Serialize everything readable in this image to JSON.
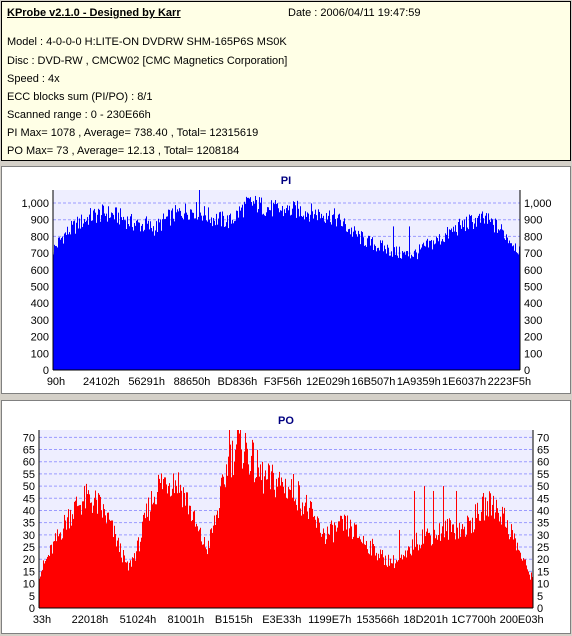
{
  "header": {
    "title": "KProbe v2.1.0 - Designed by Karr",
    "date": "Date : 2006/04/11 19:47:59",
    "lines": [
      "Model : 4-0-0-0 H:LITE-ON DVDRW SHM-165P6S MS0K",
      "Disc : DVD-RW , CMCW02 [CMC Magnetics Corporation]",
      "Speed : 4x",
      "ECC blocks sum (PI/PO) : 8/1",
      "Scanned range : 0 - 230E66h",
      "PI Max= 1078 , Average= 738.40 , Total= 12315619",
      "PO Max= 73 , Average= 12.13 , Total= 1208184"
    ]
  },
  "colors": {
    "pi": "#0000ff",
    "po": "#ff0000",
    "grid": "#9a9aff",
    "plot_bg": "#eeeeff",
    "info_bg": "#ffffe6"
  },
  "chart_data": [
    {
      "type": "area",
      "title": "PI",
      "ylim": [
        0,
        1078
      ],
      "y_ticks": [
        0,
        100,
        200,
        300,
        400,
        500,
        600,
        700,
        800,
        900,
        1000
      ],
      "y_tick_labels": [
        "0",
        "100",
        "200",
        "300",
        "400",
        "500",
        "600",
        "700",
        "800",
        "900",
        "1,000"
      ],
      "x_tick_labels": [
        "90h",
        "24102h",
        "56291h",
        "88650h",
        "BD836h",
        "F3F56h",
        "12E029h",
        "16B507h",
        "1A9359h",
        "1E6037h",
        "2223F5h"
      ],
      "grid": true,
      "envelope": [
        [
          0,
          720
        ],
        [
          0.02,
          800
        ],
        [
          0.05,
          870
        ],
        [
          0.08,
          920
        ],
        [
          0.11,
          940
        ],
        [
          0.14,
          920
        ],
        [
          0.17,
          880
        ],
        [
          0.2,
          860
        ],
        [
          0.22,
          850
        ],
        [
          0.24,
          900
        ],
        [
          0.26,
          930
        ],
        [
          0.28,
          950
        ],
        [
          0.3,
          960
        ],
        [
          0.32,
          940
        ],
        [
          0.34,
          910
        ],
        [
          0.36,
          900
        ],
        [
          0.38,
          890
        ],
        [
          0.4,
          950
        ],
        [
          0.42,
          1000
        ],
        [
          0.44,
          990
        ],
        [
          0.46,
          970
        ],
        [
          0.48,
          960
        ],
        [
          0.5,
          950
        ],
        [
          0.52,
          960
        ],
        [
          0.54,
          950
        ],
        [
          0.56,
          940
        ],
        [
          0.58,
          930
        ],
        [
          0.6,
          920
        ],
        [
          0.62,
          880
        ],
        [
          0.64,
          830
        ],
        [
          0.66,
          790
        ],
        [
          0.68,
          760
        ],
        [
          0.7,
          740
        ],
        [
          0.72,
          720
        ],
        [
          0.74,
          700
        ],
        [
          0.76,
          690
        ],
        [
          0.78,
          700
        ],
        [
          0.8,
          740
        ],
        [
          0.82,
          770
        ],
        [
          0.84,
          800
        ],
        [
          0.86,
          840
        ],
        [
          0.88,
          870
        ],
        [
          0.9,
          890
        ],
        [
          0.92,
          900
        ],
        [
          0.94,
          880
        ],
        [
          0.96,
          840
        ],
        [
          0.98,
          780
        ],
        [
          1,
          720
        ]
      ],
      "spikes": [
        [
          0.314,
          1078
        ],
        [
          0.2,
          920
        ],
        [
          0.5,
          970
        ],
        [
          0.585,
          940
        ],
        [
          0.73,
          860
        ],
        [
          0.765,
          860
        ],
        [
          0.93,
          940
        ]
      ]
    },
    {
      "type": "area",
      "title": "PO",
      "ylim": [
        0,
        73
      ],
      "y_ticks": [
        0,
        5,
        10,
        15,
        20,
        25,
        30,
        35,
        40,
        45,
        50,
        55,
        60,
        65,
        70
      ],
      "y_tick_labels": [
        "0",
        "5",
        "10",
        "15",
        "20",
        "25",
        "30",
        "35",
        "40",
        "45",
        "50",
        "55",
        "60",
        "65",
        "70"
      ],
      "x_tick_labels": [
        "33h",
        "22018h",
        "51024h",
        "81001h",
        "B1515h",
        "E3E33h",
        "1199E7h",
        "153566h",
        "18D201h",
        "1C7700h",
        "200E03h"
      ],
      "grid": true,
      "envelope": [
        [
          0,
          14
        ],
        [
          0.02,
          22
        ],
        [
          0.04,
          30
        ],
        [
          0.06,
          38
        ],
        [
          0.08,
          43
        ],
        [
          0.1,
          45
        ],
        [
          0.12,
          42
        ],
        [
          0.14,
          36
        ],
        [
          0.16,
          26
        ],
        [
          0.18,
          16
        ],
        [
          0.2,
          25
        ],
        [
          0.22,
          40
        ],
        [
          0.24,
          50
        ],
        [
          0.26,
          53
        ],
        [
          0.28,
          52
        ],
        [
          0.3,
          44
        ],
        [
          0.32,
          32
        ],
        [
          0.34,
          24
        ],
        [
          0.36,
          38
        ],
        [
          0.38,
          57
        ],
        [
          0.4,
          67
        ],
        [
          0.42,
          65
        ],
        [
          0.44,
          57
        ],
        [
          0.46,
          52
        ],
        [
          0.48,
          52
        ],
        [
          0.5,
          50
        ],
        [
          0.52,
          48
        ],
        [
          0.54,
          42
        ],
        [
          0.56,
          35
        ],
        [
          0.58,
          30
        ],
        [
          0.6,
          32
        ],
        [
          0.62,
          34
        ],
        [
          0.64,
          31
        ],
        [
          0.66,
          27
        ],
        [
          0.68,
          24
        ],
        [
          0.7,
          20
        ],
        [
          0.72,
          19
        ],
        [
          0.74,
          20
        ],
        [
          0.76,
          26
        ],
        [
          0.78,
          30
        ],
        [
          0.8,
          30
        ],
        [
          0.82,
          32
        ],
        [
          0.84,
          33
        ],
        [
          0.86,
          32
        ],
        [
          0.88,
          36
        ],
        [
          0.9,
          41
        ],
        [
          0.92,
          43
        ],
        [
          0.94,
          38
        ],
        [
          0.96,
          30
        ],
        [
          0.98,
          20
        ],
        [
          1,
          12
        ]
      ],
      "spikes": [
        [
          0.385,
          73
        ],
        [
          0.41,
          65
        ],
        [
          0.73,
          32
        ],
        [
          0.76,
          48
        ],
        [
          0.78,
          50
        ],
        [
          0.8,
          48
        ],
        [
          0.82,
          50
        ],
        [
          0.845,
          48
        ],
        [
          0.9,
          45
        ]
      ]
    }
  ]
}
